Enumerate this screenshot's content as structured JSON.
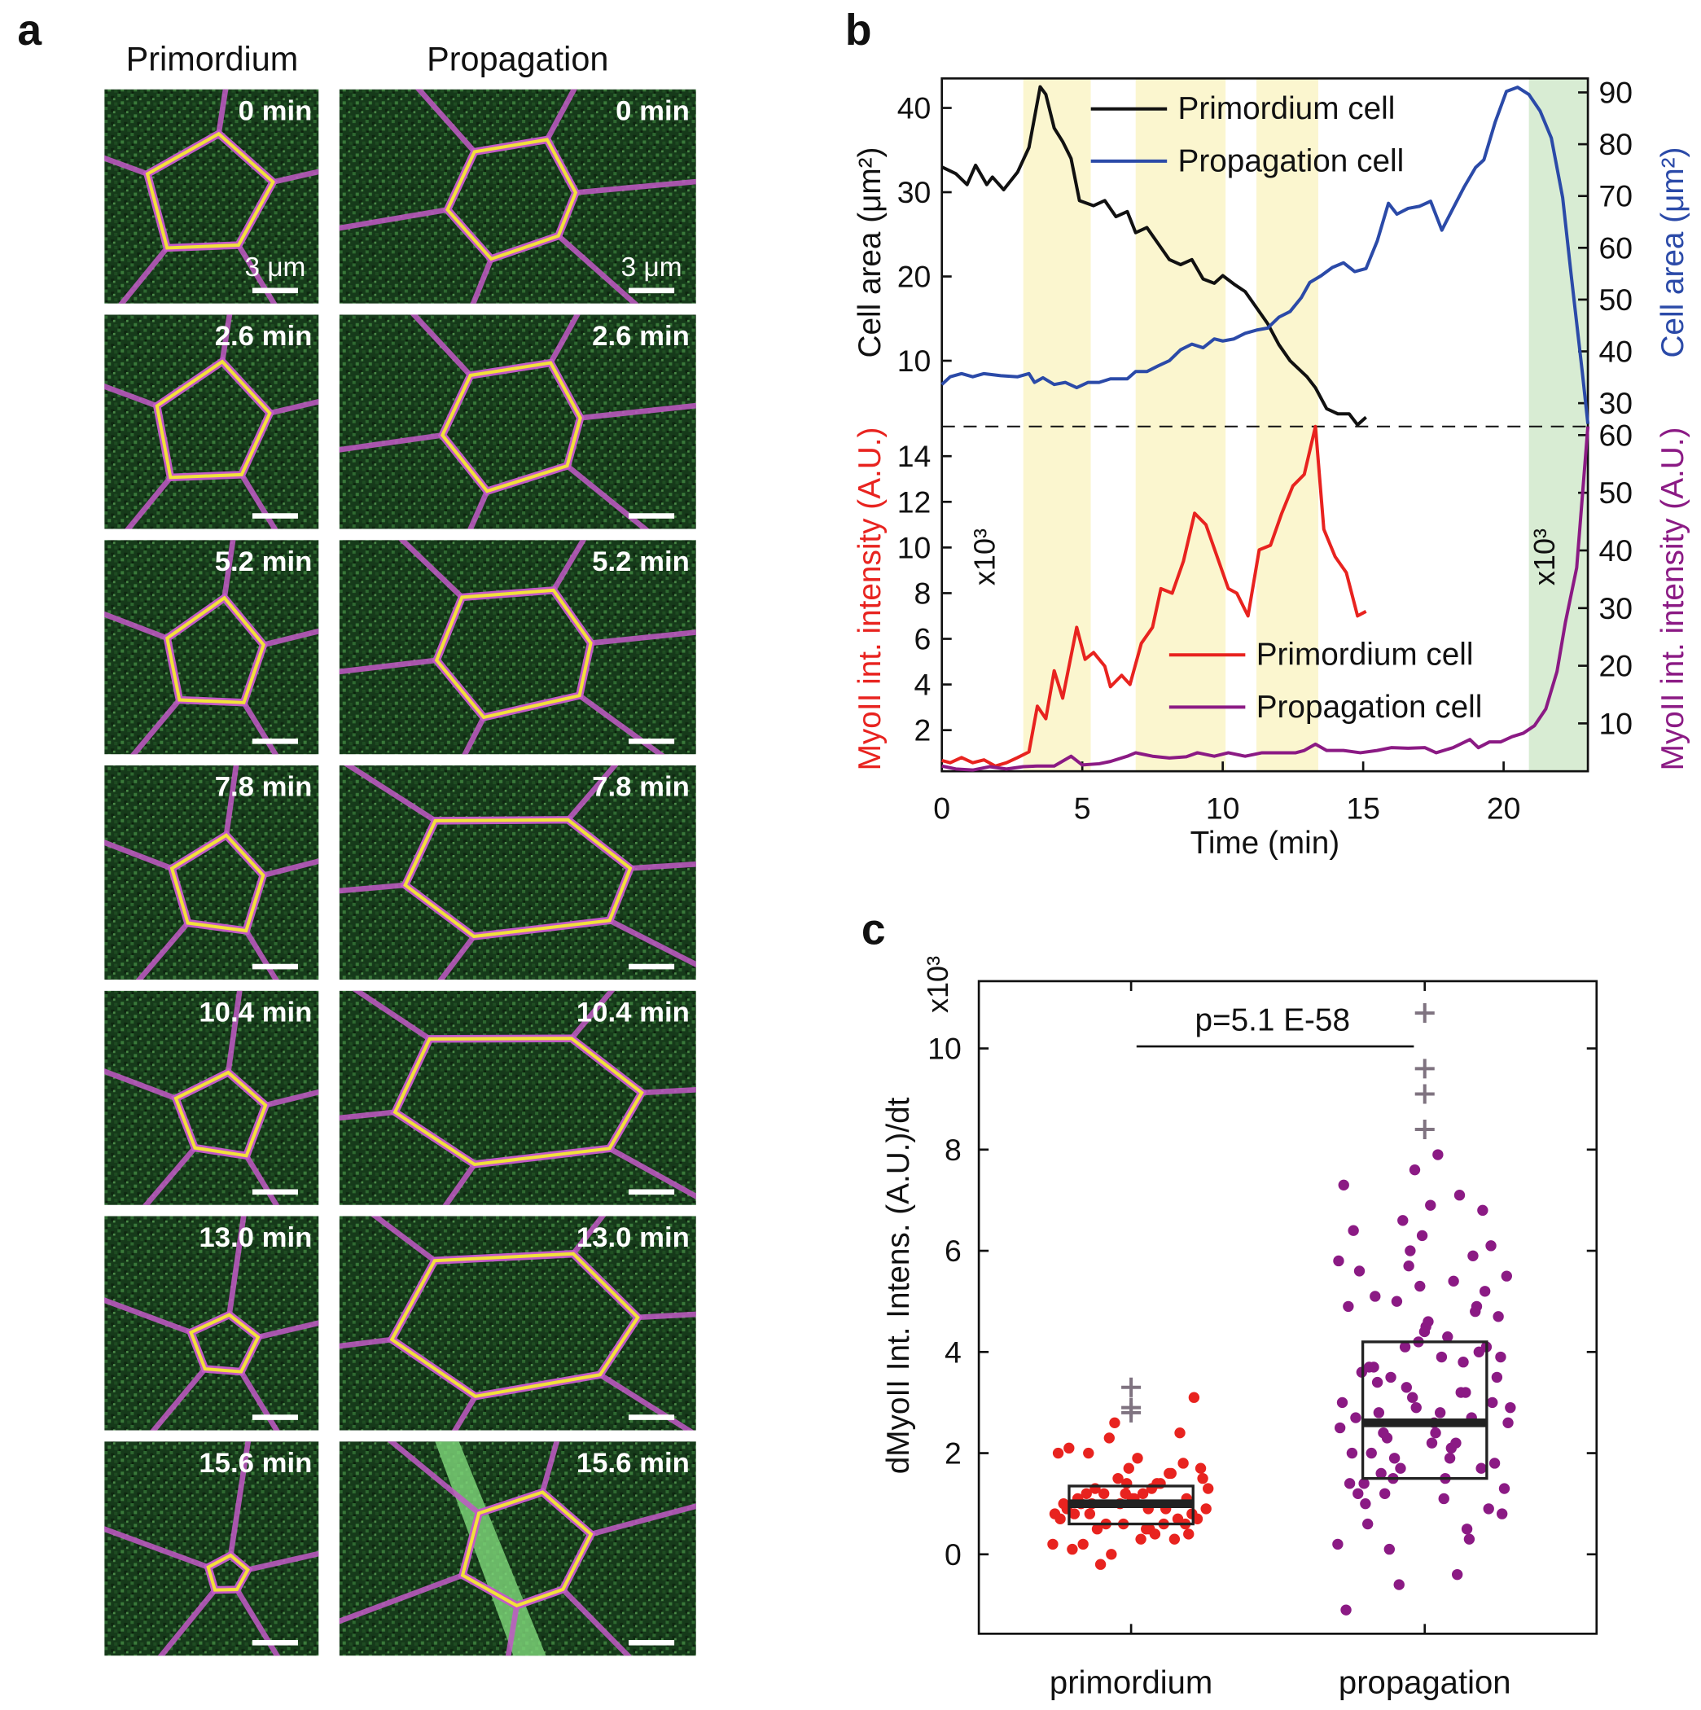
{
  "panel_labels": [
    "a",
    "b",
    "c"
  ],
  "panel_a": {
    "columns": [
      "Primordium",
      "Propagation"
    ],
    "times": [
      "0 min",
      "2.6 min",
      "5.2 min",
      "7.8 min",
      "10.4 min",
      "13.0 min",
      "15.6 min"
    ],
    "scale_bar": "3 μm"
  },
  "chart_data": [
    {
      "type": "line",
      "y_label": "Cell area (μm²)",
      "y2_label": "Cell area (μm²)",
      "legend": "upper center",
      "xlim": [
        0,
        23
      ],
      "ylim": [
        2.2,
        43.5
      ],
      "yticks": [
        10,
        20,
        30,
        40
      ],
      "y2lim": [
        25.5,
        92.7
      ],
      "y2ticks": [
        30,
        40,
        50,
        60,
        70,
        80,
        90
      ],
      "bands": [
        {
          "x0": 2.9,
          "x1": 5.3,
          "color": "#fbf6cf"
        },
        {
          "x0": 6.9,
          "x1": 10.1,
          "color": "#fbf6cf"
        },
        {
          "x0": 11.2,
          "x1": 13.4,
          "color": "#fbf6cf"
        },
        {
          "x0": 20.9,
          "x1": 23,
          "color": "#d8ecd3"
        }
      ],
      "series": [
        {
          "name": "Primordium cell",
          "color": "#111111",
          "axis": "y",
          "x": [
            0,
            0.5,
            0.9,
            1.2,
            1.6,
            1.8,
            2.2,
            2.7,
            3.1,
            3.5,
            3.7,
            4.0,
            4.3,
            4.6,
            4.9,
            5.4,
            5.8,
            6.2,
            6.6,
            6.9,
            7.3,
            7.7,
            8.1,
            8.5,
            8.9,
            9.3,
            9.7,
            10.0,
            10.4,
            10.8,
            11.2,
            11.6,
            12.0,
            12.4,
            13.0,
            13.3,
            13.7,
            14.1,
            14.5,
            14.8,
            15.1
          ],
          "values": [
            33.0,
            32.2,
            30.9,
            33.2,
            30.9,
            31.8,
            30.3,
            32.4,
            35.3,
            42.5,
            41.6,
            37.6,
            36.0,
            34.0,
            29.0,
            28.4,
            29.0,
            27.1,
            27.7,
            25.2,
            25.8,
            23.9,
            22.0,
            21.4,
            22.0,
            19.7,
            19.2,
            20.1,
            19.1,
            18.2,
            16.3,
            14.4,
            11.9,
            10.0,
            8.1,
            6.8,
            4.3,
            3.7,
            3.7,
            2.4,
            3.3
          ]
        },
        {
          "name": "Propagation cell",
          "color": "#2b4aa8",
          "axis": "y2",
          "x": [
            0,
            0.3,
            0.7,
            1.1,
            1.5,
            2.1,
            2.7,
            3.1,
            3.3,
            3.6,
            4.0,
            4.4,
            4.8,
            5.2,
            5.6,
            6.0,
            6.6,
            6.9,
            7.3,
            7.7,
            8.1,
            8.5,
            8.9,
            9.3,
            9.7,
            10.0,
            10.4,
            10.8,
            11.2,
            11.6,
            12.0,
            12.4,
            12.8,
            13.1,
            13.5,
            13.9,
            14.3,
            14.7,
            15.1,
            15.5,
            15.9,
            16.2,
            16.6,
            17.0,
            17.4,
            17.8,
            18.2,
            18.6,
            19.0,
            19.3,
            19.7,
            20.1,
            20.5,
            20.9,
            21.3,
            21.7,
            22.1,
            22.4,
            22.8,
            23.0
          ],
          "values": [
            33.6,
            35.1,
            35.7,
            35.1,
            35.7,
            35.3,
            35.1,
            35.7,
            34.0,
            34.9,
            33.6,
            34.0,
            33.0,
            34.0,
            34.0,
            34.7,
            34.7,
            36.1,
            36.1,
            37.2,
            38.2,
            40.3,
            41.4,
            40.7,
            42.4,
            42.0,
            42.4,
            43.5,
            44.1,
            44.5,
            46.6,
            47.7,
            50.4,
            53.3,
            54.6,
            56.2,
            57.1,
            55.4,
            56.0,
            61.3,
            68.6,
            66.5,
            67.6,
            68.0,
            69.0,
            63.4,
            67.6,
            71.8,
            75.5,
            77.0,
            84.3,
            90.2,
            91.0,
            89.6,
            86.4,
            81.2,
            69.7,
            55.0,
            36.1,
            26.0
          ]
        }
      ]
    },
    {
      "type": "line",
      "y_label": "MyoII int. intensity (A.U.)",
      "y2_label": "MyoII int. intensity (A.U.)",
      "legend": "lower right",
      "x_label": "Time (min)",
      "annotations": [
        "x10³",
        "x10³"
      ],
      "xlim": [
        0,
        23
      ],
      "xticks": [
        0,
        5,
        10,
        15,
        20
      ],
      "ylim": [
        0.2,
        15.3
      ],
      "yticks": [
        2,
        4,
        6,
        8,
        10,
        12,
        14
      ],
      "y2lim": [
        1.7,
        61.5
      ],
      "y2ticks": [
        10,
        20,
        30,
        40,
        50,
        60
      ],
      "series": [
        {
          "name": "Primordium cell",
          "color": "#e8231f",
          "axis": "y",
          "x": [
            0,
            0.3,
            0.7,
            1.1,
            1.5,
            1.9,
            2.3,
            2.7,
            3.1,
            3.4,
            3.7,
            4.0,
            4.3,
            4.8,
            5.1,
            5.4,
            5.8,
            6.0,
            6.4,
            6.7,
            7.1,
            7.5,
            7.8,
            8.2,
            8.6,
            9.0,
            9.4,
            9.8,
            10.2,
            10.5,
            10.9,
            11.3,
            11.7,
            12.1,
            12.5,
            12.9,
            13.3,
            13.6,
            14.0,
            14.4,
            14.8,
            15.1
          ],
          "values": [
            0.67,
            0.57,
            0.8,
            0.57,
            0.7,
            0.43,
            0.57,
            0.8,
            1.05,
            3.05,
            2.5,
            4.6,
            3.4,
            6.5,
            5.1,
            5.4,
            4.8,
            3.9,
            4.4,
            4.0,
            5.8,
            6.5,
            8.2,
            8.0,
            9.4,
            11.5,
            11.0,
            9.6,
            8.2,
            8.0,
            7.0,
            9.9,
            10.1,
            11.5,
            12.7,
            13.2,
            15.3,
            10.8,
            9.6,
            8.9,
            7.0,
            7.2
          ]
        },
        {
          "name": "Propagation cell",
          "color": "#8b1a84",
          "axis": "y2",
          "x": [
            0,
            0.5,
            1.1,
            1.7,
            2.3,
            2.9,
            3.4,
            4.0,
            4.6,
            5.0,
            5.6,
            6.0,
            6.6,
            6.9,
            7.5,
            8.1,
            8.7,
            9.1,
            9.7,
            10.2,
            10.8,
            11.4,
            12.0,
            12.6,
            12.9,
            13.3,
            13.7,
            14.3,
            14.9,
            15.5,
            16.0,
            16.6,
            17.2,
            17.6,
            18.2,
            18.8,
            19.1,
            19.5,
            19.9,
            20.3,
            20.7,
            21.1,
            21.5,
            21.9,
            22.2,
            22.6,
            23.0
          ],
          "values": [
            2.6,
            2.1,
            1.9,
            2.5,
            2.1,
            2.5,
            2.6,
            2.6,
            4.3,
            2.8,
            3.0,
            3.4,
            4.3,
            4.9,
            4.3,
            4.0,
            4.2,
            4.9,
            4.3,
            4.9,
            4.3,
            4.9,
            4.9,
            4.9,
            5.3,
            6.4,
            5.3,
            5.3,
            4.9,
            5.3,
            5.8,
            5.7,
            5.8,
            4.9,
            5.8,
            7.2,
            5.8,
            6.8,
            6.8,
            7.7,
            8.3,
            9.6,
            12.5,
            19.0,
            27.5,
            37.0,
            61.5
          ]
        }
      ]
    },
    {
      "type": "box_scatter",
      "y_label": "dMyoII Int. Intens. (A.U.)/dt",
      "annotation": "x10³",
      "p_value": "p=5.1 E-58",
      "categories": [
        "primordium",
        "propagation"
      ],
      "ylim": [
        -1.57,
        11.33
      ],
      "yticks": [
        0,
        2,
        4,
        6,
        8,
        10
      ],
      "outlier_color": "#7f7380",
      "series": [
        {
          "color": "#e8231f",
          "box": {
            "q1": 0.6,
            "median": 1.0,
            "q3": 1.35
          },
          "outliers": [
            2.8,
            2.9,
            3.3
          ],
          "values": [
            0.2,
            0.5,
            0.8,
            1.1,
            1.4,
            0.9,
            0.6,
            1.2,
            1.7,
            0.3,
            1.0,
            0.7,
            1.5,
            2.0,
            0.4,
            1.3,
            0.8,
            1.1,
            0.1,
            1.6,
            2.3,
            0.9,
            0.5,
            1.2,
            1.8,
            0.6,
            1.0,
            1.4,
            -0.2,
            0.7,
            1.9,
            1.1,
            0.3,
            2.6,
            0.8,
            1.3,
            1.0,
            0.4,
            1.7,
            2.1,
            0.9,
            0.6,
            1.5,
            1.2,
            0.2,
            2.4,
            1.0,
            0.7,
            1.4,
            0.5,
            3.1,
            1.1,
            0.8,
            1.6,
            0.0,
            1.3,
            0.9,
            2.0,
            0.6,
            1.2
          ]
        },
        {
          "color": "#8b1a84",
          "box": {
            "q1": 1.5,
            "median": 2.6,
            "q3": 4.2
          },
          "outliers": [
            8.4,
            9.1,
            9.6,
            10.7
          ],
          "values": [
            0.2,
            1.5,
            2.8,
            4.1,
            5.3,
            6.4,
            3.2,
            1.9,
            0.8,
            2.4,
            3.7,
            4.9,
            6.0,
            7.3,
            2.1,
            1.2,
            3.0,
            4.5,
            5.6,
            0.5,
            1.7,
            2.6,
            3.9,
            5.1,
            6.8,
            2.9,
            1.4,
            -0.4,
            3.5,
            4.7,
            2.2,
            1.0,
            5.9,
            3.3,
            2.5,
            4.3,
            1.6,
            0.9,
            6.3,
            2.7,
            3.8,
            5.0,
            1.3,
            7.9,
            2.0,
            4.0,
            3.1,
            -1.1,
            5.4,
            2.3,
            1.8,
            4.6,
            3.6,
            0.3,
            6.6,
            2.9,
            1.1,
            3.4,
            5.2,
            4.2,
            2.0,
            7.1,
            1.5,
            3.9,
            2.6,
            0.6,
            4.8,
            5.7,
            3.0,
            1.9,
            2.4,
            6.1,
            4.4,
            1.2,
            3.2,
            -0.6,
            5.5,
            2.8,
            3.7,
            1.7,
            7.6,
            4.9,
            2.2,
            0.1,
            3.5,
            6.9,
            1.4,
            2.7,
            4.1,
            5.8
          ]
        }
      ]
    }
  ]
}
